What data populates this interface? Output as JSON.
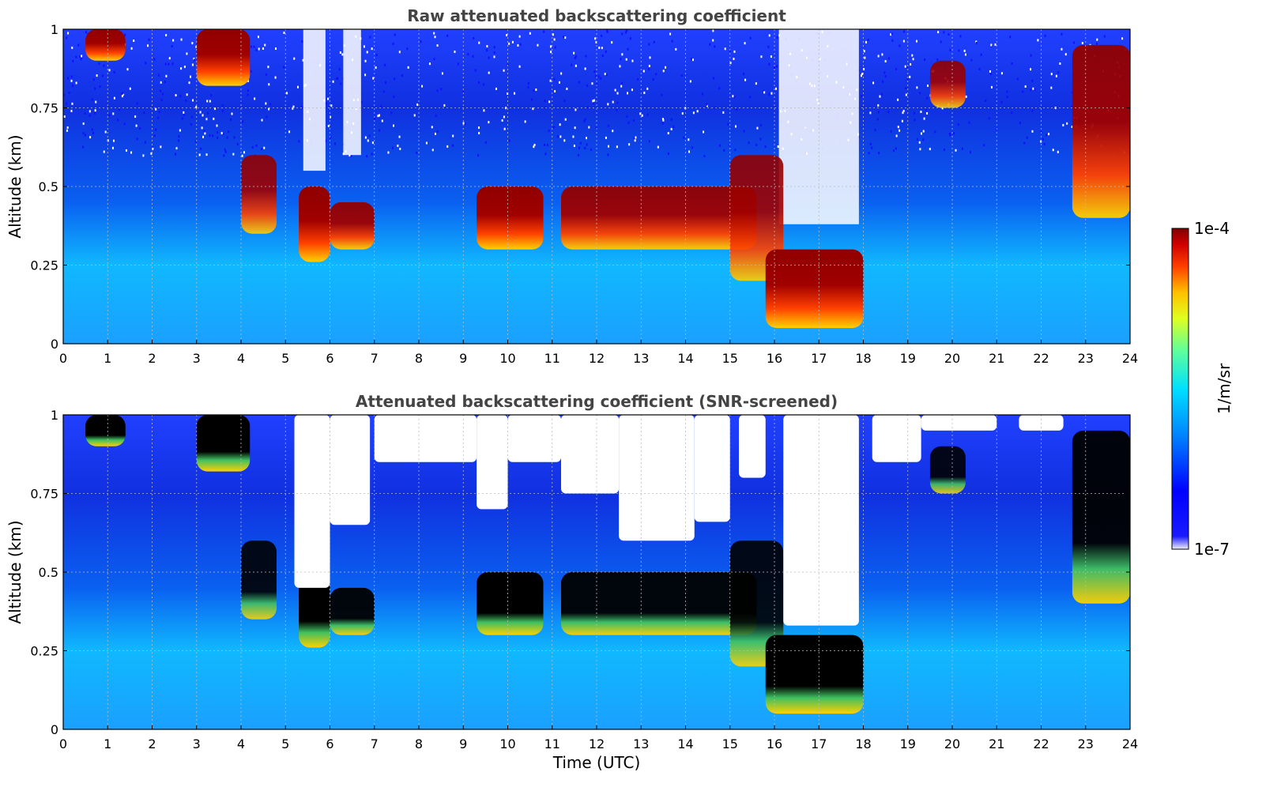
{
  "chart_data": [
    {
      "type": "heatmap",
      "title": "Raw attenuated backscattering coefficient",
      "ylabel": "Altitude (km)",
      "xlabel": "",
      "x_ticks": [
        "0",
        "1",
        "2",
        "3",
        "4",
        "5",
        "6",
        "7",
        "8",
        "9",
        "10",
        "11",
        "12",
        "13",
        "14",
        "15",
        "16",
        "17",
        "18",
        "19",
        "20",
        "21",
        "22",
        "23",
        "24"
      ],
      "y_ticks": [
        "0",
        "0.25",
        "0.5",
        "0.75",
        "1"
      ],
      "xlim": [
        0,
        24
      ],
      "ylim": [
        0,
        1
      ],
      "grid": true,
      "color_scale": "log",
      "features": [
        {
          "t_start": 0.5,
          "t_end": 1.4,
          "alt_low": 0.9,
          "alt_high": 1.0,
          "level": 1.0
        },
        {
          "t_start": 3.0,
          "t_end": 4.2,
          "alt_low": 0.82,
          "alt_high": 1.0,
          "level": 1.0
        },
        {
          "t_start": 4.0,
          "t_end": 4.8,
          "alt_low": 0.35,
          "alt_high": 0.6,
          "level": 0.9
        },
        {
          "t_start": 5.3,
          "t_end": 6.0,
          "alt_low": 0.26,
          "alt_high": 0.5,
          "level": 1.0
        },
        {
          "t_start": 6.0,
          "t_end": 7.0,
          "alt_low": 0.3,
          "alt_high": 0.45,
          "level": 0.95
        },
        {
          "t_start": 9.3,
          "t_end": 10.8,
          "alt_low": 0.3,
          "alt_high": 0.5,
          "level": 1.0
        },
        {
          "t_start": 11.2,
          "t_end": 15.6,
          "alt_low": 0.3,
          "alt_high": 0.5,
          "level": 0.95
        },
        {
          "t_start": 15.0,
          "t_end": 16.2,
          "alt_low": 0.2,
          "alt_high": 0.6,
          "level": 0.9
        },
        {
          "t_start": 15.8,
          "t_end": 18.0,
          "alt_low": 0.05,
          "alt_high": 0.3,
          "level": 1.0
        },
        {
          "t_start": 19.5,
          "t_end": 20.3,
          "alt_low": 0.75,
          "alt_high": 0.9,
          "level": 0.9
        },
        {
          "t_start": 22.7,
          "t_end": 24.0,
          "alt_low": 0.4,
          "alt_high": 0.95,
          "level": 0.95
        }
      ]
    },
    {
      "type": "heatmap",
      "title": "Attenuated backscattering coefficient (SNR-screened)",
      "ylabel": "Altitude (km)",
      "xlabel": "Time (UTC)",
      "x_ticks": [
        "0",
        "1",
        "2",
        "3",
        "4",
        "5",
        "6",
        "7",
        "8",
        "9",
        "10",
        "11",
        "12",
        "13",
        "14",
        "15",
        "16",
        "17",
        "18",
        "19",
        "20",
        "21",
        "22",
        "23",
        "24"
      ],
      "y_ticks": [
        "0",
        "0.25",
        "0.5",
        "0.75",
        "1"
      ],
      "xlim": [
        0,
        24
      ],
      "ylim": [
        0,
        1
      ],
      "grid": true,
      "color_scale": "log",
      "saturated_color": "#000000",
      "masked": "low SNR regions shown white"
    }
  ],
  "colorbar": {
    "label": "1/m/sr",
    "max_label": "1e-4",
    "min_label": "1e-7",
    "colormap": "jet"
  }
}
